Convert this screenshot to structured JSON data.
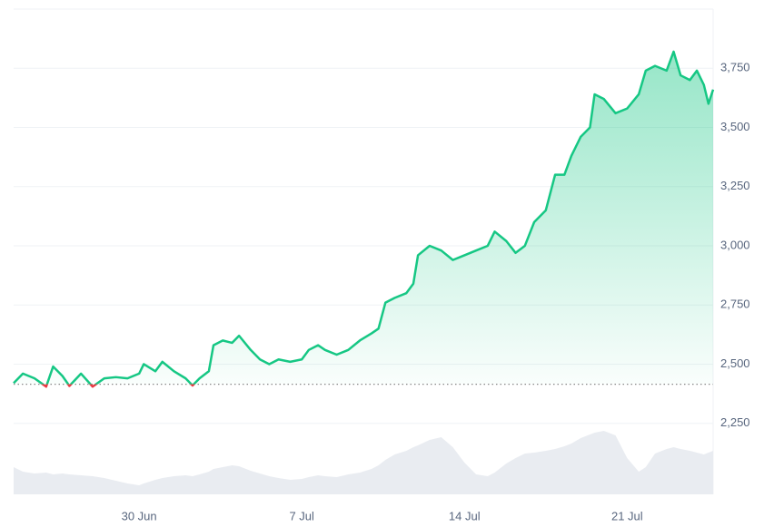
{
  "chart_data": {
    "type": "line",
    "x": [
      24.6,
      25,
      25.5,
      26,
      26.3,
      26.7,
      27,
      27.5,
      28,
      28.5,
      29,
      29.5,
      30,
      30.2,
      30.7,
      31,
      31.5,
      32,
      32.3,
      32.6,
      33,
      33.2,
      33.6,
      34,
      34.3,
      34.8,
      35.2,
      35.6,
      36,
      36.5,
      37,
      37.3,
      37.7,
      38,
      38.5,
      39,
      39.5,
      40,
      40.3,
      40.6,
      41,
      41.5,
      41.8,
      42,
      42.5,
      43,
      43.5,
      44,
      44.5,
      45,
      45.3,
      45.8,
      46.2,
      46.6,
      47,
      47.5,
      47.9,
      48.3,
      48.6,
      49,
      49.4,
      49.6,
      50,
      50.5,
      51,
      51.5,
      51.8,
      52.2,
      52.7,
      53,
      53.3,
      53.7,
      54,
      54.3,
      54.5,
      54.7
    ],
    "values": [
      2420,
      2460,
      2440,
      2405,
      2490,
      2450,
      2408,
      2460,
      2405,
      2440,
      2445,
      2440,
      2460,
      2500,
      2470,
      2510,
      2470,
      2440,
      2410,
      2440,
      2470,
      2580,
      2600,
      2590,
      2620,
      2560,
      2520,
      2500,
      2520,
      2510,
      2520,
      2560,
      2580,
      2560,
      2540,
      2560,
      2600,
      2630,
      2650,
      2760,
      2780,
      2800,
      2840,
      2960,
      3000,
      2980,
      2940,
      2960,
      2980,
      3000,
      3060,
      3020,
      2970,
      3000,
      3100,
      3150,
      3300,
      3300,
      3380,
      3460,
      3500,
      3640,
      3620,
      3560,
      3580,
      3640,
      3740,
      3760,
      3740,
      3820,
      3720,
      3700,
      3740,
      3680,
      3600,
      3660
    ],
    "volume": [
      3,
      2.5,
      2.3,
      2.4,
      2.2,
      2.3,
      2.2,
      2.1,
      2,
      1.8,
      1.5,
      1.2,
      1,
      1.2,
      1.6,
      1.8,
      2,
      2.1,
      2,
      2.2,
      2.5,
      2.8,
      3,
      3.2,
      3.1,
      2.6,
      2.3,
      2,
      1.8,
      1.6,
      1.7,
      1.9,
      2.1,
      2,
      1.9,
      2.2,
      2.4,
      2.8,
      3.2,
      3.8,
      4.4,
      4.8,
      5.2,
      5.4,
      6,
      6.3,
      5.2,
      3.5,
      2.2,
      2,
      2.4,
      3.4,
      4,
      4.5,
      4.6,
      4.8,
      5,
      5.3,
      5.6,
      6.2,
      6.6,
      6.8,
      7,
      6.5,
      4,
      2.5,
      3,
      4.5,
      5,
      5.2,
      5,
      4.8,
      4.6,
      4.4,
      4.6,
      4.8
    ],
    "y2lim": [
      0,
      10
    ],
    "baseline": 2415,
    "color": "#16c784",
    "color_below": "#ea3943",
    "volume_color": "#e9ecf1",
    "xlim": [
      24.6,
      54.7
    ],
    "xticks": [
      {
        "value": 30,
        "label": "30 Jun"
      },
      {
        "value": 37,
        "label": "7 Jul"
      },
      {
        "value": 44,
        "label": "14 Jul"
      },
      {
        "value": 51,
        "label": "21 Jul"
      }
    ],
    "ylim": [
      1950,
      4000
    ],
    "yticks": [
      {
        "value": 2250,
        "label": "2,250"
      },
      {
        "value": 2500,
        "label": "2,500"
      },
      {
        "value": 2750,
        "label": "2,750"
      },
      {
        "value": 3000,
        "label": "3,000"
      },
      {
        "value": 3250,
        "label": "3,250"
      },
      {
        "value": 3500,
        "label": "3,500"
      },
      {
        "value": 3750,
        "label": "3,750"
      }
    ],
    "grid": true
  }
}
